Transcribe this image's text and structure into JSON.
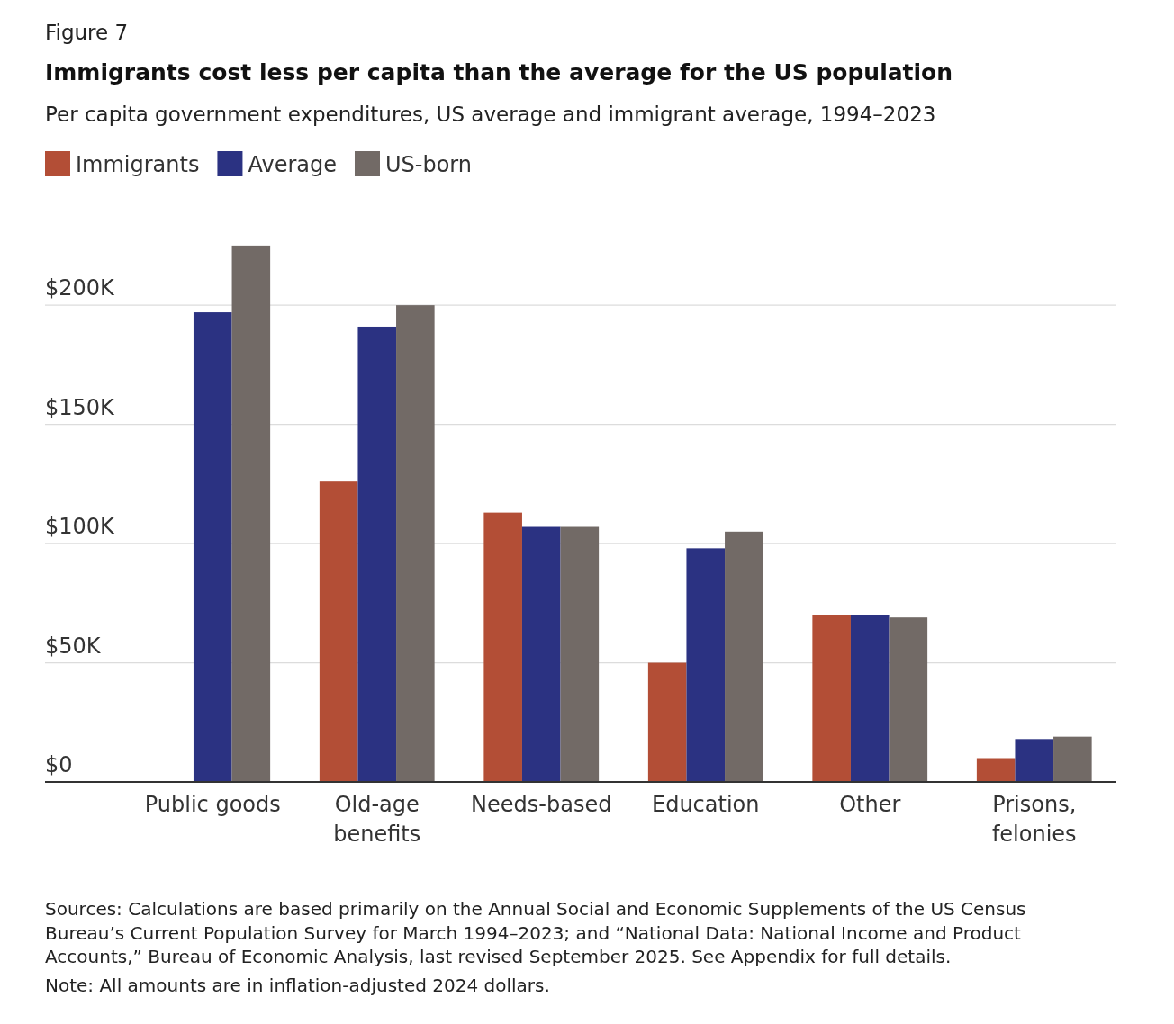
{
  "chart_data": {
    "type": "bar",
    "title": "Immigrants cost less per capita than the average for the US population",
    "subtitle": "Per capita government expenditures, US average and immigrant average, 1994–2023",
    "categories": [
      "Public goods",
      "Old-age benefits",
      "Needs-based",
      "Education",
      "Other",
      "Prisons, felonies"
    ],
    "series": [
      {
        "name": "Immigrants",
        "color": "#b34e36",
        "values": [
          null,
          126000,
          113000,
          50000,
          70000,
          10000
        ]
      },
      {
        "name": "Average",
        "color": "#2b3282",
        "values": [
          197000,
          191000,
          107000,
          98000,
          70000,
          18000
        ]
      },
      {
        "name": "US-born",
        "color": "#726a66",
        "values": [
          225000,
          200000,
          107000,
          105000,
          69000,
          19000
        ]
      }
    ],
    "ylim": [
      0,
      328000
    ],
    "yticks": [
      {
        "value": 0,
        "label": "$0"
      },
      {
        "value": 50000,
        "label": "$50K"
      },
      {
        "value": 100000,
        "label": "$100K"
      },
      {
        "value": 150000,
        "label": "$150K"
      },
      {
        "value": 200000,
        "label": "$200K"
      }
    ],
    "grid": "y",
    "legend": "top left",
    "annotations": [
      "Figure 7",
      "Sources: Calculations are based primarily on the Annual Social and Economic Supplements of the US Census Bureau’s Current Population Survey for March 1994–2023; and “National Data: National Income and Product Accounts,” Bureau of Economic Analysis, last revised September 2025. See Appendix for full details.",
      "Note: All amounts are in inflation-adjusted 2024 dollars."
    ]
  }
}
